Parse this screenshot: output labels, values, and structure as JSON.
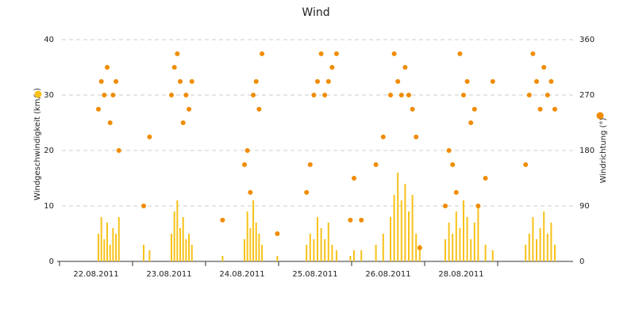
{
  "chart_data": {
    "type": "bar-scatter",
    "title": "Wind",
    "categories": [
      "22.08.2011",
      "23.08.2011",
      "24.08.2011",
      "25.08.2011",
      "26.08.2011",
      "28.08.2011",
      null
    ],
    "x": [
      0.5,
      0.54,
      0.58,
      0.62,
      0.66,
      0.7,
      0.74,
      0.78,
      1.12,
      1.2,
      1.5,
      1.54,
      1.58,
      1.62,
      1.66,
      1.7,
      1.74,
      1.78,
      2.2,
      2.5,
      2.54,
      2.58,
      2.62,
      2.66,
      2.7,
      2.74,
      2.95,
      3.35,
      3.4,
      3.45,
      3.5,
      3.55,
      3.6,
      3.65,
      3.7,
      3.76,
      3.95,
      4.0,
      4.1,
      4.3,
      4.4,
      4.5,
      4.55,
      4.6,
      4.65,
      4.7,
      4.75,
      4.8,
      4.85,
      4.9,
      5.25,
      5.3,
      5.35,
      5.4,
      5.45,
      5.5,
      5.55,
      5.6,
      5.65,
      5.7,
      5.8,
      5.9,
      6.35,
      6.4,
      6.45,
      6.5,
      6.55,
      6.6,
      6.65,
      6.7,
      6.75
    ],
    "xlim": [
      0,
      7
    ],
    "series": [
      {
        "name": "Windgeschwindigkeit (km/h)",
        "color": "#f7c21a",
        "mark": "bar",
        "values": [
          5,
          8,
          4,
          7,
          3,
          6,
          5,
          8,
          3,
          2,
          5,
          9,
          11,
          6,
          8,
          4,
          5,
          3,
          1,
          4,
          9,
          6,
          11,
          7,
          5,
          3,
          1,
          3,
          5,
          4,
          8,
          6,
          4,
          7,
          3,
          2,
          1,
          2,
          2,
          3,
          5,
          8,
          12,
          16,
          11,
          14,
          9,
          12,
          5,
          3,
          4,
          7,
          5,
          9,
          6,
          11,
          8,
          4,
          7,
          10,
          3,
          2,
          3,
          5,
          8,
          4,
          6,
          9,
          5,
          7,
          3
        ]
      },
      {
        "name": "Windrichtung (°)",
        "color": "#f08c00",
        "mark": "dot",
        "axis": "y2",
        "values": [
          247,
          292,
          270,
          315,
          225,
          270,
          292,
          180,
          90,
          202,
          270,
          315,
          337,
          292,
          225,
          270,
          247,
          292,
          67,
          157,
          180,
          112,
          270,
          292,
          247,
          337,
          45,
          112,
          157,
          270,
          292,
          337,
          270,
          292,
          315,
          337,
          67,
          135,
          67,
          157,
          202,
          270,
          337,
          292,
          270,
          315,
          270,
          247,
          202,
          22,
          90,
          180,
          157,
          112,
          337,
          270,
          292,
          225,
          247,
          90,
          135,
          292,
          157,
          270,
          337,
          292,
          247,
          315,
          270,
          292,
          247
        ]
      }
    ],
    "ylim": [
      0,
      40
    ],
    "yticks": [
      0,
      10,
      20,
      30,
      40
    ],
    "y2lim": [
      0,
      360
    ],
    "y2ticks": [
      0,
      90,
      180,
      270,
      360
    ],
    "grid": true
  }
}
